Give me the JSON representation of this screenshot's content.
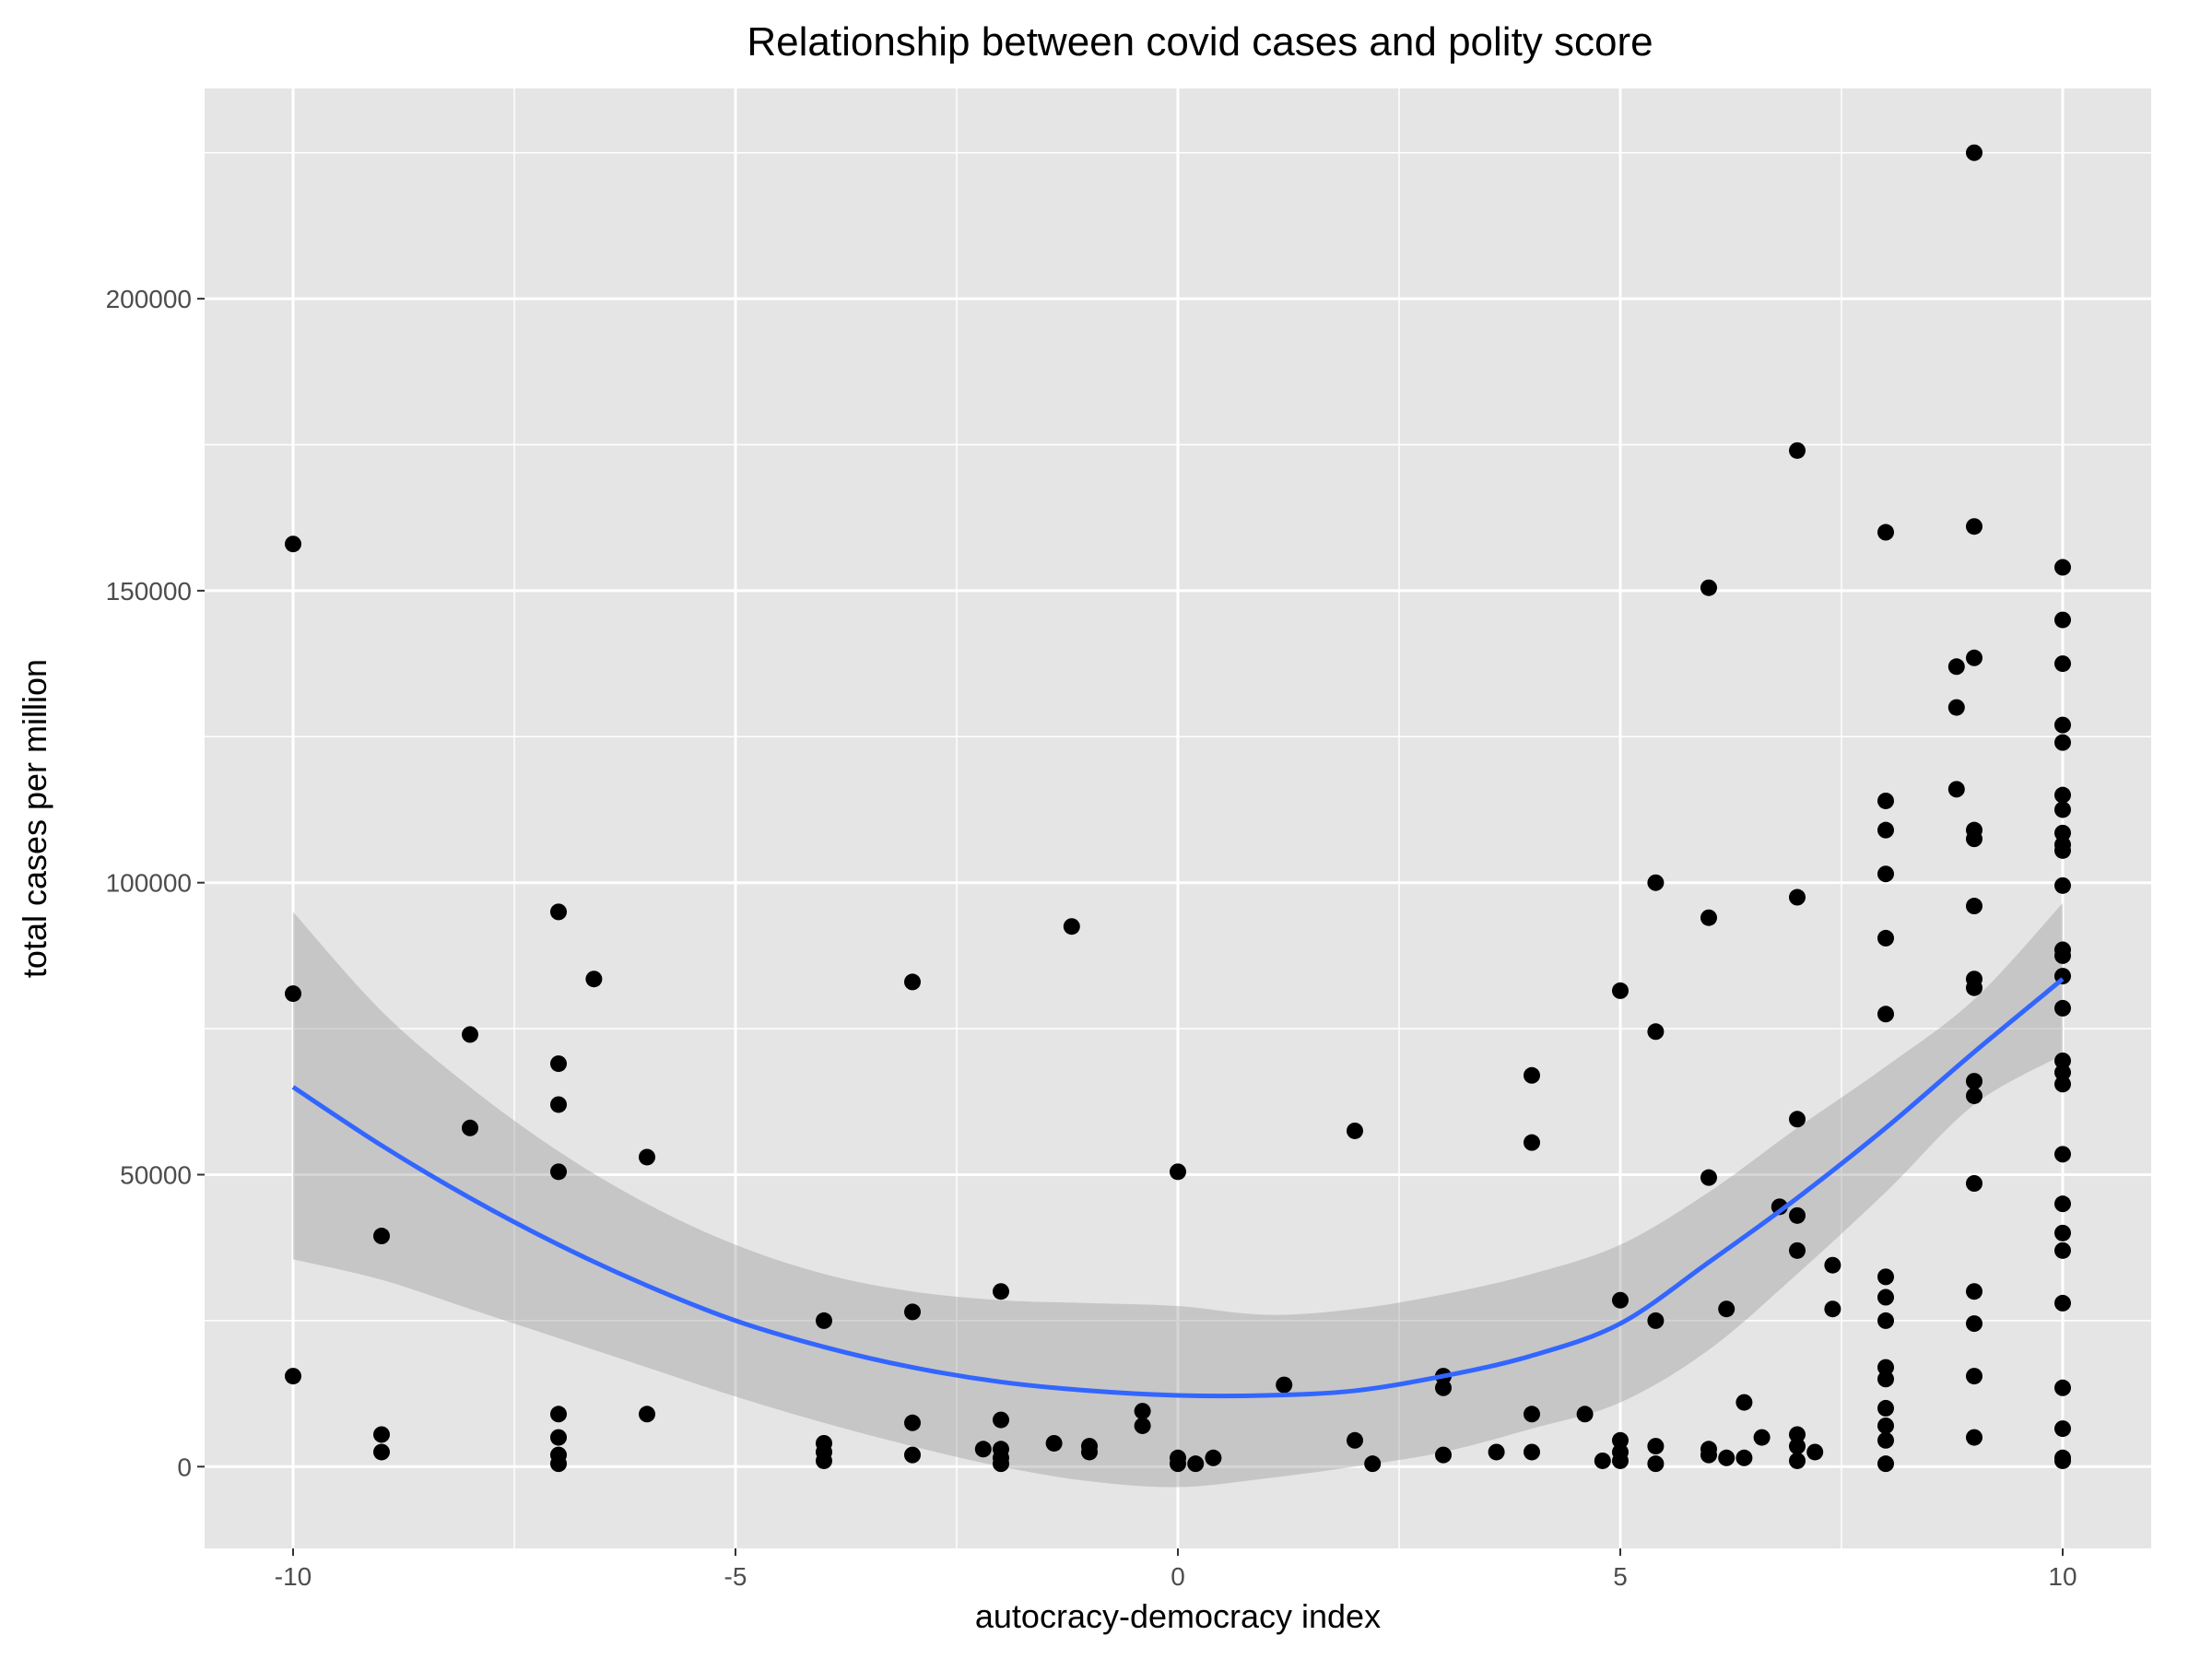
{
  "chart_data": {
    "type": "scatter",
    "title": "Relationship between covid cases and polity score",
    "xlabel": "autocracy-democracy index",
    "ylabel": "total cases per million",
    "xlim": [
      -11,
      11
    ],
    "ylim": [
      -14000,
      236000
    ],
    "x_ticks": [
      -10,
      -5,
      0,
      5,
      10
    ],
    "x_tick_labels": [
      "-10",
      "-5",
      "0",
      "5",
      "10"
    ],
    "y_ticks": [
      0,
      50000,
      100000,
      150000,
      200000
    ],
    "y_tick_labels": [
      "0",
      "50000",
      "100000",
      "150000",
      "200000"
    ],
    "grid": true,
    "colors": {
      "panel_background": "#e5e5e5",
      "grid": "#ffffff",
      "points": "#000000",
      "smooth_line": "#3366ff",
      "confidence_band": "#999999"
    },
    "points": [
      [
        -10,
        158000
      ],
      [
        -10,
        81000
      ],
      [
        -10,
        15500
      ],
      [
        -9,
        39500
      ],
      [
        -9,
        5500
      ],
      [
        -9,
        2500
      ],
      [
        -8,
        74000
      ],
      [
        -8,
        58000
      ],
      [
        -7,
        95000
      ],
      [
        -7,
        69000
      ],
      [
        -7,
        62000
      ],
      [
        -7,
        50500
      ],
      [
        -7,
        9000
      ],
      [
        -7,
        5000
      ],
      [
        -7,
        2000
      ],
      [
        -7,
        500
      ],
      [
        -6.6,
        83500
      ],
      [
        -6,
        53000
      ],
      [
        -6,
        9000
      ],
      [
        -4,
        25000
      ],
      [
        -4,
        4000
      ],
      [
        -4,
        2500
      ],
      [
        -4,
        1000
      ],
      [
        -3,
        83000
      ],
      [
        -3,
        26500
      ],
      [
        -3,
        7500
      ],
      [
        -3,
        2000
      ],
      [
        -2.2,
        3000
      ],
      [
        -2,
        30000
      ],
      [
        -2,
        8000
      ],
      [
        -2,
        3000
      ],
      [
        -2,
        1500
      ],
      [
        -2,
        500
      ],
      [
        -1.4,
        4000
      ],
      [
        -1.2,
        92500
      ],
      [
        -1,
        3500
      ],
      [
        -1,
        2500
      ],
      [
        -0.4,
        9500
      ],
      [
        -0.4,
        7000
      ],
      [
        0,
        50500
      ],
      [
        0,
        1500
      ],
      [
        0,
        500
      ],
      [
        0.2,
        500
      ],
      [
        0.4,
        1500
      ],
      [
        1.2,
        14000
      ],
      [
        2,
        57500
      ],
      [
        2,
        4500
      ],
      [
        2.2,
        500
      ],
      [
        3,
        15500
      ],
      [
        3,
        13500
      ],
      [
        3,
        2000
      ],
      [
        3.6,
        2500
      ],
      [
        4,
        67000
      ],
      [
        4,
        55500
      ],
      [
        4,
        9000
      ],
      [
        4,
        2500
      ],
      [
        4.6,
        9000
      ],
      [
        4.8,
        1000
      ],
      [
        5,
        81500
      ],
      [
        5,
        28500
      ],
      [
        5,
        4500
      ],
      [
        5,
        2500
      ],
      [
        5,
        1000
      ],
      [
        5.4,
        100000
      ],
      [
        5.4,
        74500
      ],
      [
        5.4,
        25000
      ],
      [
        5.4,
        3500
      ],
      [
        5.4,
        500
      ],
      [
        6,
        150500
      ],
      [
        6,
        94000
      ],
      [
        6,
        49500
      ],
      [
        6,
        3000
      ],
      [
        6,
        2000
      ],
      [
        6.2,
        27000
      ],
      [
        6.2,
        1500
      ],
      [
        6.4,
        11000
      ],
      [
        6.4,
        1500
      ],
      [
        6.6,
        5000
      ],
      [
        6.8,
        44500
      ],
      [
        7,
        174000
      ],
      [
        7,
        97500
      ],
      [
        7,
        59500
      ],
      [
        7,
        43000
      ],
      [
        7,
        37000
      ],
      [
        7,
        5500
      ],
      [
        7,
        3500
      ],
      [
        7,
        1000
      ],
      [
        7.2,
        2500
      ],
      [
        7.4,
        34500
      ],
      [
        7.4,
        27000
      ],
      [
        8,
        160000
      ],
      [
        8,
        114000
      ],
      [
        8,
        109000
      ],
      [
        8,
        101500
      ],
      [
        8,
        90500
      ],
      [
        8,
        77500
      ],
      [
        8,
        32500
      ],
      [
        8,
        29000
      ],
      [
        8,
        25000
      ],
      [
        8,
        17000
      ],
      [
        8,
        15000
      ],
      [
        8,
        10000
      ],
      [
        8,
        7000
      ],
      [
        8,
        4500
      ],
      [
        8,
        500
      ],
      [
        8.8,
        137000
      ],
      [
        8.8,
        130000
      ],
      [
        8.8,
        116000
      ],
      [
        9,
        225000
      ],
      [
        9,
        161000
      ],
      [
        9,
        138500
      ],
      [
        9,
        109000
      ],
      [
        9,
        107500
      ],
      [
        9,
        96000
      ],
      [
        9,
        83500
      ],
      [
        9,
        82000
      ],
      [
        9,
        66000
      ],
      [
        9,
        63500
      ],
      [
        9,
        48500
      ],
      [
        9,
        30000
      ],
      [
        9,
        24500
      ],
      [
        9,
        15500
      ],
      [
        9,
        5000
      ],
      [
        10,
        154000
      ],
      [
        10,
        145000
      ],
      [
        10,
        137500
      ],
      [
        10,
        127000
      ],
      [
        10,
        124000
      ],
      [
        10,
        115000
      ],
      [
        10,
        112500
      ],
      [
        10,
        108500
      ],
      [
        10,
        106500
      ],
      [
        10,
        105500
      ],
      [
        10,
        99500
      ],
      [
        10,
        88500
      ],
      [
        10,
        87500
      ],
      [
        10,
        84000
      ],
      [
        10,
        78500
      ],
      [
        10,
        69500
      ],
      [
        10,
        67500
      ],
      [
        10,
        65500
      ],
      [
        10,
        53500
      ],
      [
        10,
        45000
      ],
      [
        10,
        40000
      ],
      [
        10,
        37000
      ],
      [
        10,
        28000
      ],
      [
        10,
        13500
      ],
      [
        10,
        6500
      ],
      [
        10,
        1500
      ],
      [
        10,
        1000
      ]
    ],
    "smooth": {
      "x": [
        -10,
        -9,
        -8,
        -7,
        -6,
        -5,
        -4,
        -3,
        -2,
        -1,
        0,
        1,
        2,
        3,
        4,
        5,
        6,
        7,
        8,
        9,
        10
      ],
      "y": [
        65000,
        55000,
        46000,
        38000,
        31000,
        25000,
        20500,
        17000,
        14500,
        13000,
        12200,
        12200,
        13000,
        15500,
        19000,
        24500,
        35000,
        46000,
        58000,
        71000,
        83500
      ],
      "lower": [
        35500,
        32000,
        27000,
        22000,
        17000,
        12000,
        7500,
        3500,
        0,
        -2500,
        -3500,
        -2000,
        0,
        2500,
        6500,
        11000,
        20000,
        33000,
        47000,
        62000,
        70500
      ],
      "upper": [
        95000,
        78000,
        65000,
        54000,
        45000,
        38000,
        33000,
        30000,
        28500,
        28000,
        27500,
        26000,
        27000,
        29500,
        33000,
        38000,
        47000,
        58000,
        68500,
        80000,
        96500
      ]
    }
  }
}
